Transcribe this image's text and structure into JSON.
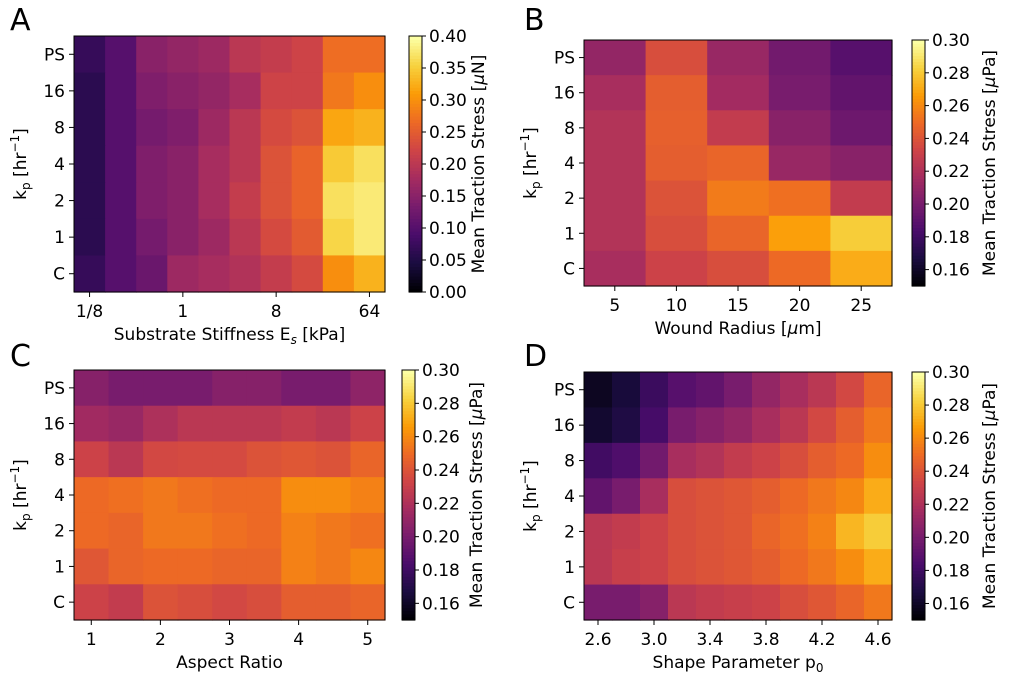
{
  "colormap": {
    "name": "inferno",
    "stops": [
      "#000004",
      "#1b0c41",
      "#4a0c6b",
      "#781c6d",
      "#a52c60",
      "#cf4446",
      "#ed6925",
      "#fb9b06",
      "#f7d13d",
      "#fcffa4"
    ]
  },
  "chart_data": [
    {
      "type": "heatmap",
      "panel": "A",
      "title": "",
      "xlabel": "Substrate Stiffness E",
      "xlabel_sub": "s",
      "xlabel_tail": " [kPa]",
      "ylabel": "k",
      "ylabel_sub": "p",
      "ylabel_tail": " [hr",
      "ylabel_sup": "−1",
      "ylabel_end": "]",
      "rows": [
        "PS",
        "16",
        "8",
        "4",
        "2",
        "1",
        "C"
      ],
      "xticks": [
        {
          "label": "1/8",
          "pos": 0
        },
        {
          "label": "1",
          "pos": 3
        },
        {
          "label": "8",
          "pos": 6
        },
        {
          "label": "64",
          "pos": 9
        }
      ],
      "ncols": 10,
      "colorbar": {
        "label": "Mean Traction Stress [",
        "label_unit": "μ",
        "label_tail": "N]",
        "min": 0.0,
        "max": 0.4,
        "ticks": [
          "0.00",
          "0.05",
          "0.10",
          "0.15",
          "0.20",
          "0.25",
          "0.30",
          "0.35",
          "0.40"
        ]
      },
      "values": [
        [
          0.07,
          0.1,
          0.15,
          0.16,
          0.17,
          0.2,
          0.21,
          0.22,
          0.27,
          0.27
        ],
        [
          0.06,
          0.1,
          0.14,
          0.15,
          0.16,
          0.18,
          0.22,
          0.22,
          0.28,
          0.3
        ],
        [
          0.06,
          0.1,
          0.13,
          0.14,
          0.17,
          0.2,
          0.23,
          0.24,
          0.32,
          0.33
        ],
        [
          0.06,
          0.1,
          0.14,
          0.15,
          0.18,
          0.2,
          0.24,
          0.26,
          0.35,
          0.37
        ],
        [
          0.06,
          0.1,
          0.14,
          0.15,
          0.18,
          0.21,
          0.24,
          0.26,
          0.37,
          0.38
        ],
        [
          0.06,
          0.1,
          0.13,
          0.15,
          0.17,
          0.2,
          0.23,
          0.25,
          0.36,
          0.38
        ],
        [
          0.07,
          0.1,
          0.12,
          0.17,
          0.18,
          0.19,
          0.21,
          0.23,
          0.3,
          0.33
        ]
      ]
    },
    {
      "type": "heatmap",
      "panel": "B",
      "title": "",
      "xlabel": "Wound Radius [",
      "xlabel_unit": "μ",
      "xlabel_tail": "m]",
      "ylabel": "k",
      "ylabel_sub": "p",
      "ylabel_tail": " [hr",
      "ylabel_sup": "−1",
      "ylabel_end": "]",
      "rows": [
        "PS",
        "16",
        "8",
        "4",
        "2",
        "1",
        "C"
      ],
      "xticks": [
        {
          "label": "5",
          "pos": 0
        },
        {
          "label": "10",
          "pos": 1
        },
        {
          "label": "15",
          "pos": 2
        },
        {
          "label": "20",
          "pos": 3
        },
        {
          "label": "25",
          "pos": 4
        }
      ],
      "ncols": 5,
      "colorbar": {
        "label": "Mean Traction Stress [",
        "label_unit": "μ",
        "label_tail": "Pa]",
        "min": 0.15,
        "max": 0.3,
        "ticks": [
          "0.16",
          "0.18",
          "0.20",
          "0.22",
          "0.24",
          "0.26",
          "0.28",
          "0.30"
        ]
      },
      "values": [
        [
          0.21,
          0.238,
          0.212,
          0.198,
          0.188
        ],
        [
          0.218,
          0.245,
          0.216,
          0.2,
          0.192
        ],
        [
          0.222,
          0.246,
          0.228,
          0.206,
          0.196
        ],
        [
          0.222,
          0.245,
          0.248,
          0.212,
          0.206
        ],
        [
          0.222,
          0.24,
          0.256,
          0.252,
          0.228
        ],
        [
          0.222,
          0.238,
          0.248,
          0.268,
          0.282
        ],
        [
          0.218,
          0.232,
          0.238,
          0.25,
          0.272
        ]
      ]
    },
    {
      "type": "heatmap",
      "panel": "C",
      "title": "",
      "xlabel": "Aspect Ratio",
      "ylabel": "k",
      "ylabel_sub": "p",
      "ylabel_tail": " [hr",
      "ylabel_sup": "−1",
      "ylabel_end": "]",
      "rows": [
        "PS",
        "16",
        "8",
        "4",
        "2",
        "1",
        "C"
      ],
      "xticks": [
        {
          "label": "1",
          "pos": 0
        },
        {
          "label": "2",
          "pos": 2
        },
        {
          "label": "3",
          "pos": 4
        },
        {
          "label": "4",
          "pos": 6
        },
        {
          "label": "5",
          "pos": 8
        }
      ],
      "ncols": 9,
      "colorbar": {
        "label": "Mean Traction Stress [",
        "label_unit": "μ",
        "label_tail": "Pa]",
        "min": 0.15,
        "max": 0.3,
        "ticks": [
          "0.16",
          "0.18",
          "0.20",
          "0.22",
          "0.24",
          "0.26",
          "0.28",
          "0.30"
        ]
      },
      "values": [
        [
          0.205,
          0.2,
          0.2,
          0.2,
          0.205,
          0.205,
          0.2,
          0.2,
          0.208
        ],
        [
          0.215,
          0.212,
          0.22,
          0.225,
          0.225,
          0.225,
          0.228,
          0.225,
          0.232
        ],
        [
          0.232,
          0.225,
          0.235,
          0.236,
          0.236,
          0.24,
          0.242,
          0.24,
          0.248
        ],
        [
          0.25,
          0.252,
          0.255,
          0.252,
          0.25,
          0.25,
          0.262,
          0.262,
          0.258
        ],
        [
          0.25,
          0.248,
          0.255,
          0.255,
          0.252,
          0.25,
          0.258,
          0.255,
          0.252
        ],
        [
          0.242,
          0.248,
          0.25,
          0.25,
          0.248,
          0.248,
          0.258,
          0.255,
          0.26
        ],
        [
          0.232,
          0.228,
          0.24,
          0.238,
          0.235,
          0.238,
          0.245,
          0.245,
          0.248
        ]
      ]
    },
    {
      "type": "heatmap",
      "panel": "D",
      "title": "",
      "xlabel": "Shape Parameter p",
      "xlabel_sub": "0",
      "ylabel": "k",
      "ylabel_sub": "p",
      "ylabel_tail": " [hr",
      "ylabel_sup": "−1",
      "ylabel_end": "]",
      "rows": [
        "PS",
        "16",
        "8",
        "4",
        "2",
        "1",
        "C"
      ],
      "xticks": [
        {
          "label": "2.6",
          "pos": 0
        },
        {
          "label": "3.0",
          "pos": 2
        },
        {
          "label": "3.4",
          "pos": 4
        },
        {
          "label": "3.8",
          "pos": 6
        },
        {
          "label": "4.2",
          "pos": 8
        },
        {
          "label": "4.6",
          "pos": 10
        }
      ],
      "ncols": 11,
      "colorbar": {
        "label": "Mean Traction Stress [",
        "label_unit": "μ",
        "label_tail": "Pa]",
        "min": 0.15,
        "max": 0.3,
        "ticks": [
          "0.16",
          "0.18",
          "0.20",
          "0.22",
          "0.24",
          "0.26",
          "0.28",
          "0.30"
        ]
      },
      "values": [
        [
          0.158,
          0.165,
          0.178,
          0.188,
          0.192,
          0.2,
          0.21,
          0.218,
          0.225,
          0.235,
          0.248
        ],
        [
          0.162,
          0.168,
          0.182,
          0.2,
          0.205,
          0.21,
          0.218,
          0.225,
          0.235,
          0.245,
          0.255
        ],
        [
          0.18,
          0.185,
          0.198,
          0.218,
          0.222,
          0.228,
          0.232,
          0.238,
          0.245,
          0.25,
          0.262
        ],
        [
          0.192,
          0.2,
          0.218,
          0.238,
          0.24,
          0.242,
          0.245,
          0.25,
          0.255,
          0.26,
          0.272
        ],
        [
          0.225,
          0.228,
          0.232,
          0.238,
          0.24,
          0.242,
          0.248,
          0.252,
          0.258,
          0.275,
          0.282
        ],
        [
          0.225,
          0.23,
          0.232,
          0.238,
          0.24,
          0.242,
          0.245,
          0.25,
          0.255,
          0.262,
          0.272
        ],
        [
          0.2,
          0.2,
          0.205,
          0.225,
          0.228,
          0.23,
          0.232,
          0.238,
          0.242,
          0.248,
          0.255
        ]
      ]
    }
  ]
}
